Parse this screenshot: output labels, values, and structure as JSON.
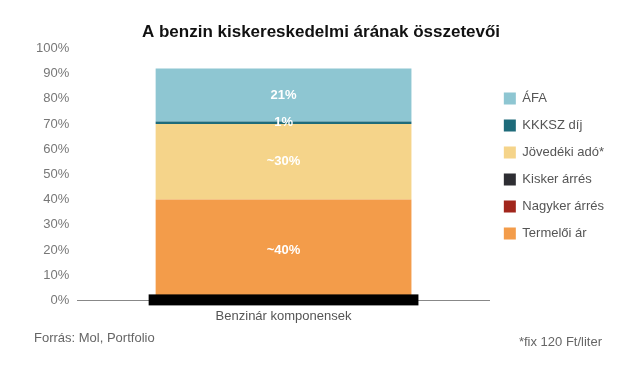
{
  "chart_data": {
    "type": "bar",
    "title": "A benzin kiskereskedelmi árának összetevői",
    "categories": [
      "Benzinár komponensek"
    ],
    "series": [
      {
        "name": "Termelői ár",
        "color": "#f39c4a",
        "values": [
          40
        ],
        "value_labels": [
          "~40%"
        ]
      },
      {
        "name": "Nagyker árrés",
        "color": "#a1261c",
        "values": [
          null
        ],
        "value_labels": [
          null
        ]
      },
      {
        "name": "Kisker árrés",
        "color": "#2e2e33",
        "values": [
          null
        ],
        "value_labels": [
          null
        ]
      },
      {
        "name": "Jövedéki adó*",
        "color": "#f5d48a",
        "values": [
          30
        ],
        "value_labels": [
          "~30%"
        ]
      },
      {
        "name": "KKKSZ díj",
        "color": "#1e6b7a",
        "values": [
          1
        ],
        "value_labels": [
          "1%"
        ]
      },
      {
        "name": "ÁFA",
        "color": "#8ec6d2",
        "values": [
          21
        ],
        "value_labels": [
          "21%"
        ]
      }
    ],
    "stacked": true,
    "data_labels": true,
    "legend": "right",
    "grid": false,
    "ylim": [
      0,
      100
    ],
    "yticks": [
      {
        "value": 0,
        "label": "0%"
      },
      {
        "value": 10,
        "label": "10%"
      },
      {
        "value": 20,
        "label": "20%"
      },
      {
        "value": 30,
        "label": "30%"
      },
      {
        "value": 40,
        "label": "40%"
      },
      {
        "value": 50,
        "label": "50%"
      },
      {
        "value": 60,
        "label": "60%"
      },
      {
        "value": 70,
        "label": "70%"
      },
      {
        "value": 80,
        "label": "80%"
      },
      {
        "value": 90,
        "label": "90%"
      },
      {
        "value": 100,
        "label": "100%"
      }
    ],
    "source": "Forrás: Mol, Portfolio",
    "note": "*fix 120 Ft/liter"
  }
}
